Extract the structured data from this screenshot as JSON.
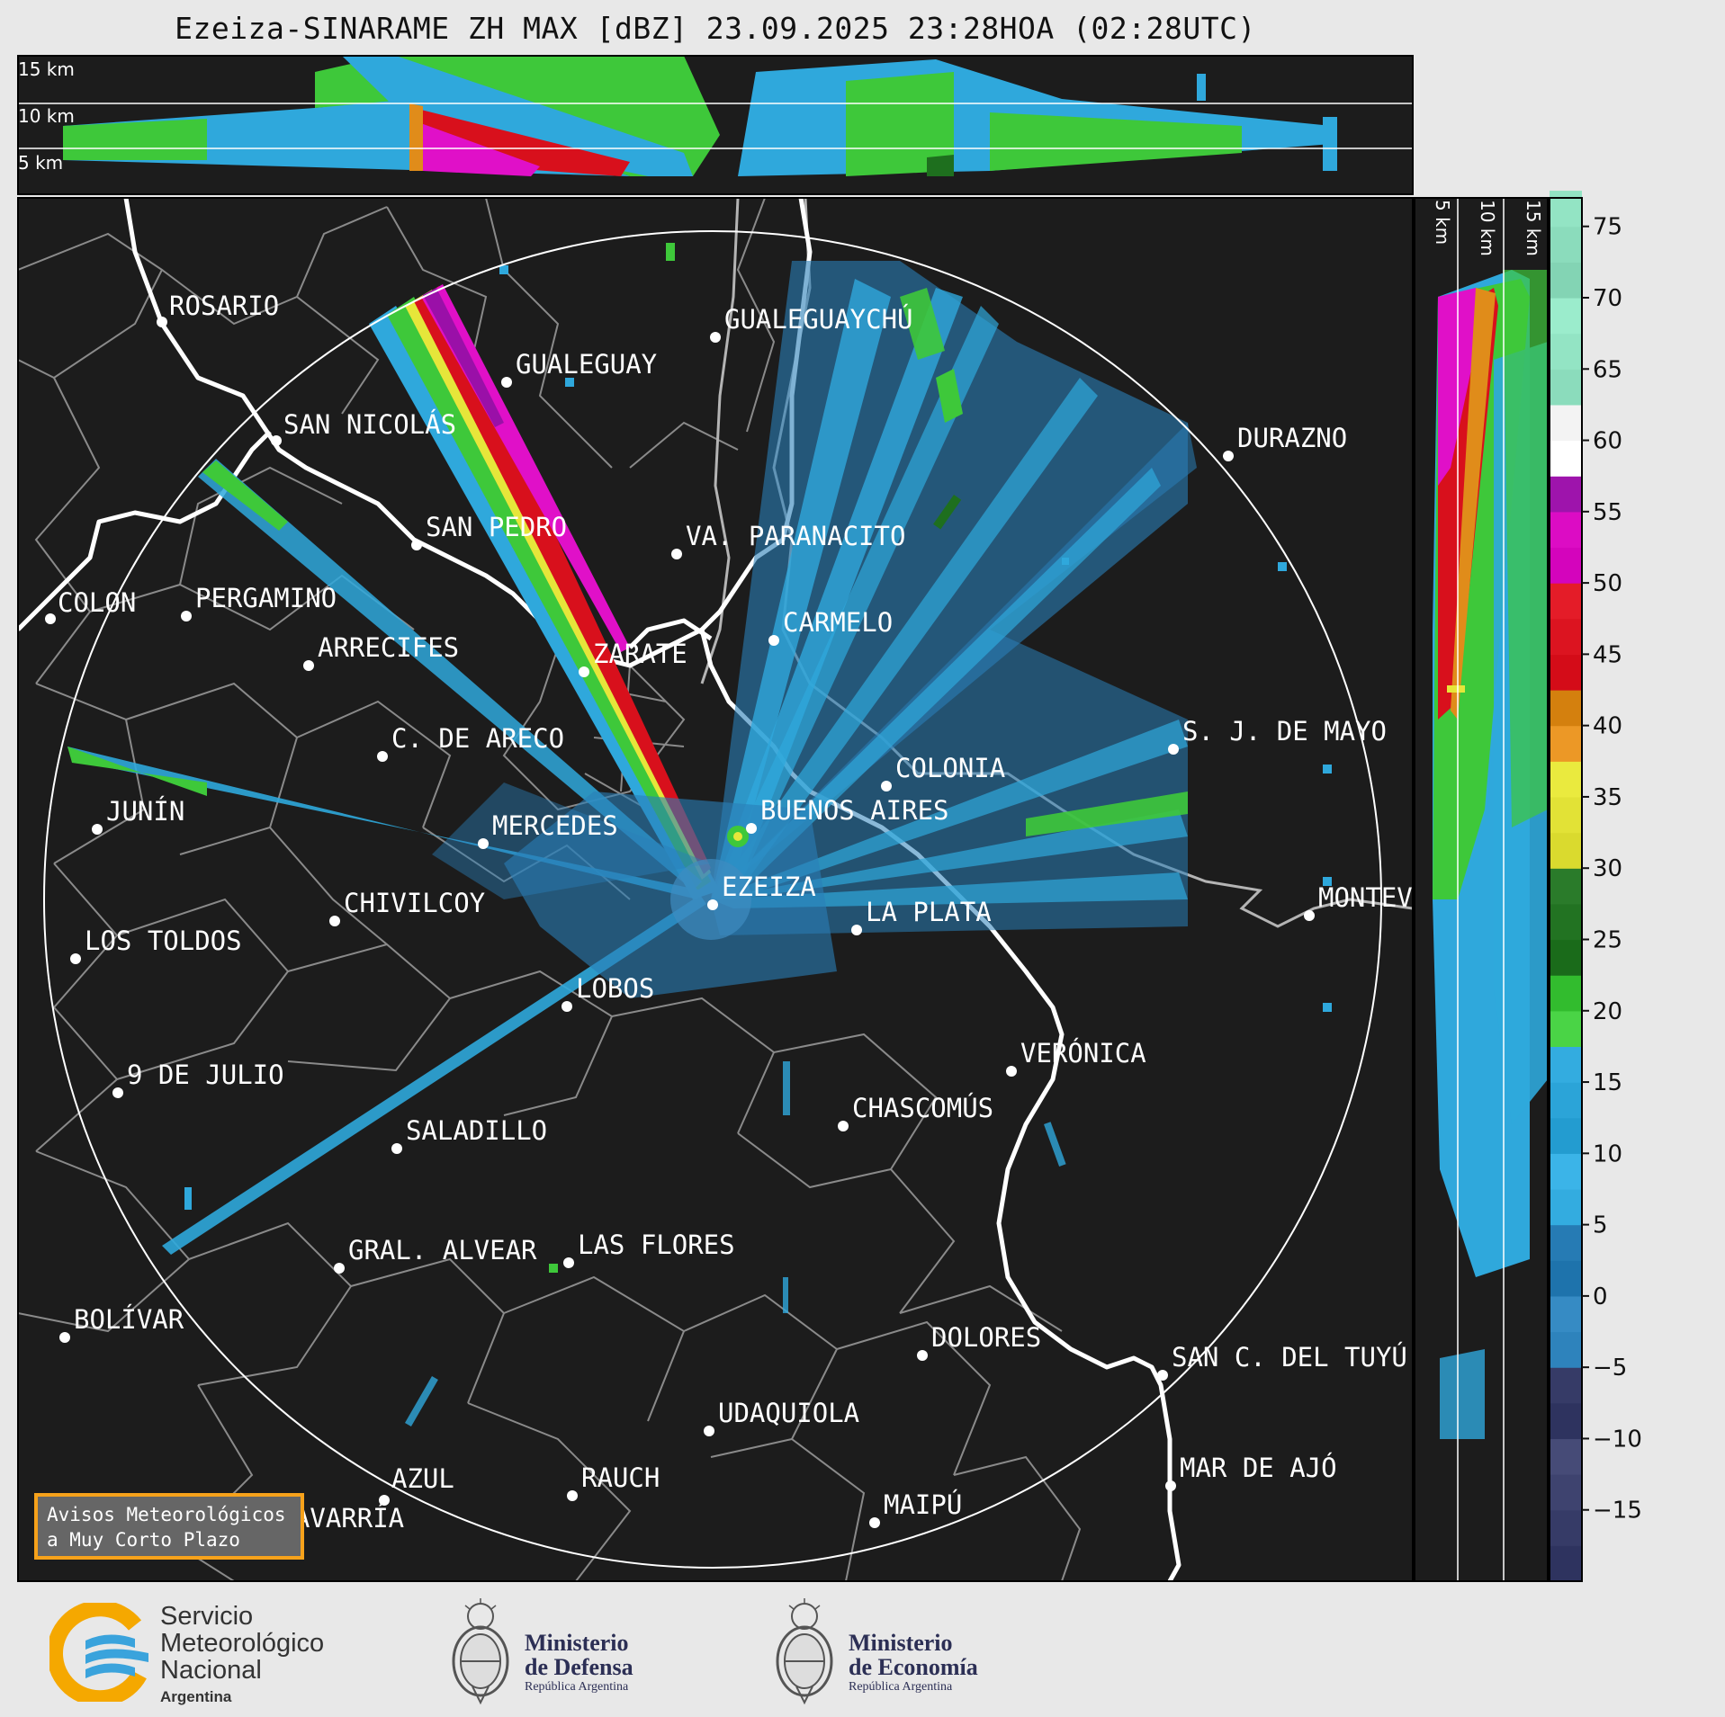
{
  "title": "Ezeiza-SINARAME ZH MAX [dBZ] 23.09.2025 23:28HOA (02:28UTC)",
  "top_panel": {
    "height_labels": [
      "15 km",
      "10 km",
      "5 km"
    ]
  },
  "side_panel": {
    "height_labels": [
      "5 km",
      "10 km",
      "15 km"
    ]
  },
  "colorbar": {
    "ticks": [
      "75",
      "70",
      "65",
      "60",
      "55",
      "50",
      "45",
      "40",
      "35",
      "30",
      "25",
      "20",
      "15",
      "10",
      "5",
      "0",
      "−5",
      "−10",
      "−15"
    ],
    "range_dbz": [
      -20,
      77
    ],
    "colors": {
      "negative_dark": "#3a3f6b",
      "low_blue": "#2a7fb8",
      "light_blue": "#2fa8dc",
      "green": "#3ec83a",
      "dark_green": "#1e6f1e",
      "yellow": "#e6e63a",
      "orange": "#e08c1a",
      "red": "#d8101c",
      "magenta": "#e010c8",
      "purple": "#9a10a8",
      "white": "#ffffff",
      "mint": "#8fe0c0"
    }
  },
  "map": {
    "background": "#1c1c1c",
    "radar": "EZEIZA",
    "cities": [
      {
        "id": "rosario",
        "name": "ROSARIO"
      },
      {
        "id": "gualeguaychu",
        "name": "GUALEGUAYCHÚ"
      },
      {
        "id": "gualeguay",
        "name": "GUALEGUAY"
      },
      {
        "id": "san-nicolas",
        "name": "SAN NICOLÁS"
      },
      {
        "id": "durazno",
        "name": "DURAZNO"
      },
      {
        "id": "san-pedro",
        "name": "SAN PEDRO"
      },
      {
        "id": "paranacito",
        "name": "VA. PARANACITO"
      },
      {
        "id": "colon",
        "name": "COLON"
      },
      {
        "id": "pergamino",
        "name": "PERGAMINO"
      },
      {
        "id": "carmelo",
        "name": "CARMELO"
      },
      {
        "id": "arrecifes",
        "name": "ARRECIFES"
      },
      {
        "id": "zarate",
        "name": "ZARATE"
      },
      {
        "id": "sjdemayo",
        "name": "S. J. DE MAYO"
      },
      {
        "id": "c-de-areco",
        "name": "C. DE ARECO"
      },
      {
        "id": "colonia",
        "name": "COLONIA"
      },
      {
        "id": "junin",
        "name": "JUNÍN"
      },
      {
        "id": "buenos-aires",
        "name": "BUENOS AIRES"
      },
      {
        "id": "mercedes",
        "name": "MERCEDES"
      },
      {
        "id": "ezeiza",
        "name": "EZEIZA"
      },
      {
        "id": "montevideo",
        "name": "MONTEV"
      },
      {
        "id": "chivilcoy",
        "name": "CHIVILCOY"
      },
      {
        "id": "la-plata",
        "name": "LA PLATA"
      },
      {
        "id": "los-toldos",
        "name": "LOS TOLDOS"
      },
      {
        "id": "lobos",
        "name": "LOBOS"
      },
      {
        "id": "veronica",
        "name": "VERÓNICA"
      },
      {
        "id": "9-de-julio",
        "name": "9 DE JULIO"
      },
      {
        "id": "chascomus",
        "name": "CHASCOMÚS"
      },
      {
        "id": "saladillo",
        "name": "SALADILLO"
      },
      {
        "id": "gral-alvear",
        "name": "GRAL. ALVEAR"
      },
      {
        "id": "las-flores",
        "name": "LAS FLORES"
      },
      {
        "id": "bolivar",
        "name": "BOLÍVAR"
      },
      {
        "id": "dolores",
        "name": "DOLORES"
      },
      {
        "id": "san-c-del-tuyu",
        "name": "SAN C. DEL TUYÚ"
      },
      {
        "id": "udaquiola",
        "name": "UDAQUIOLA"
      },
      {
        "id": "azul",
        "name": "AZUL"
      },
      {
        "id": "rauch",
        "name": "RAUCH"
      },
      {
        "id": "mar-de-ajo",
        "name": "MAR DE AJÓ"
      },
      {
        "id": "olavarria",
        "name": "OLAVARRÍA"
      },
      {
        "id": "maipu",
        "name": "MAIPÚ"
      }
    ]
  },
  "avisos": {
    "line1": "Avisos Meteorológicos",
    "line2": "a Muy Corto Plazo"
  },
  "footer": {
    "smn": {
      "line1": "Servicio",
      "line2": "Meteorológico",
      "line3": "Nacional",
      "country": "Argentina"
    },
    "defensa": {
      "line1": "Ministerio",
      "line2": "de Defensa",
      "sub": "República Argentina"
    },
    "economia": {
      "line1": "Ministerio",
      "line2": "de Economía",
      "sub": "República Argentina"
    }
  }
}
